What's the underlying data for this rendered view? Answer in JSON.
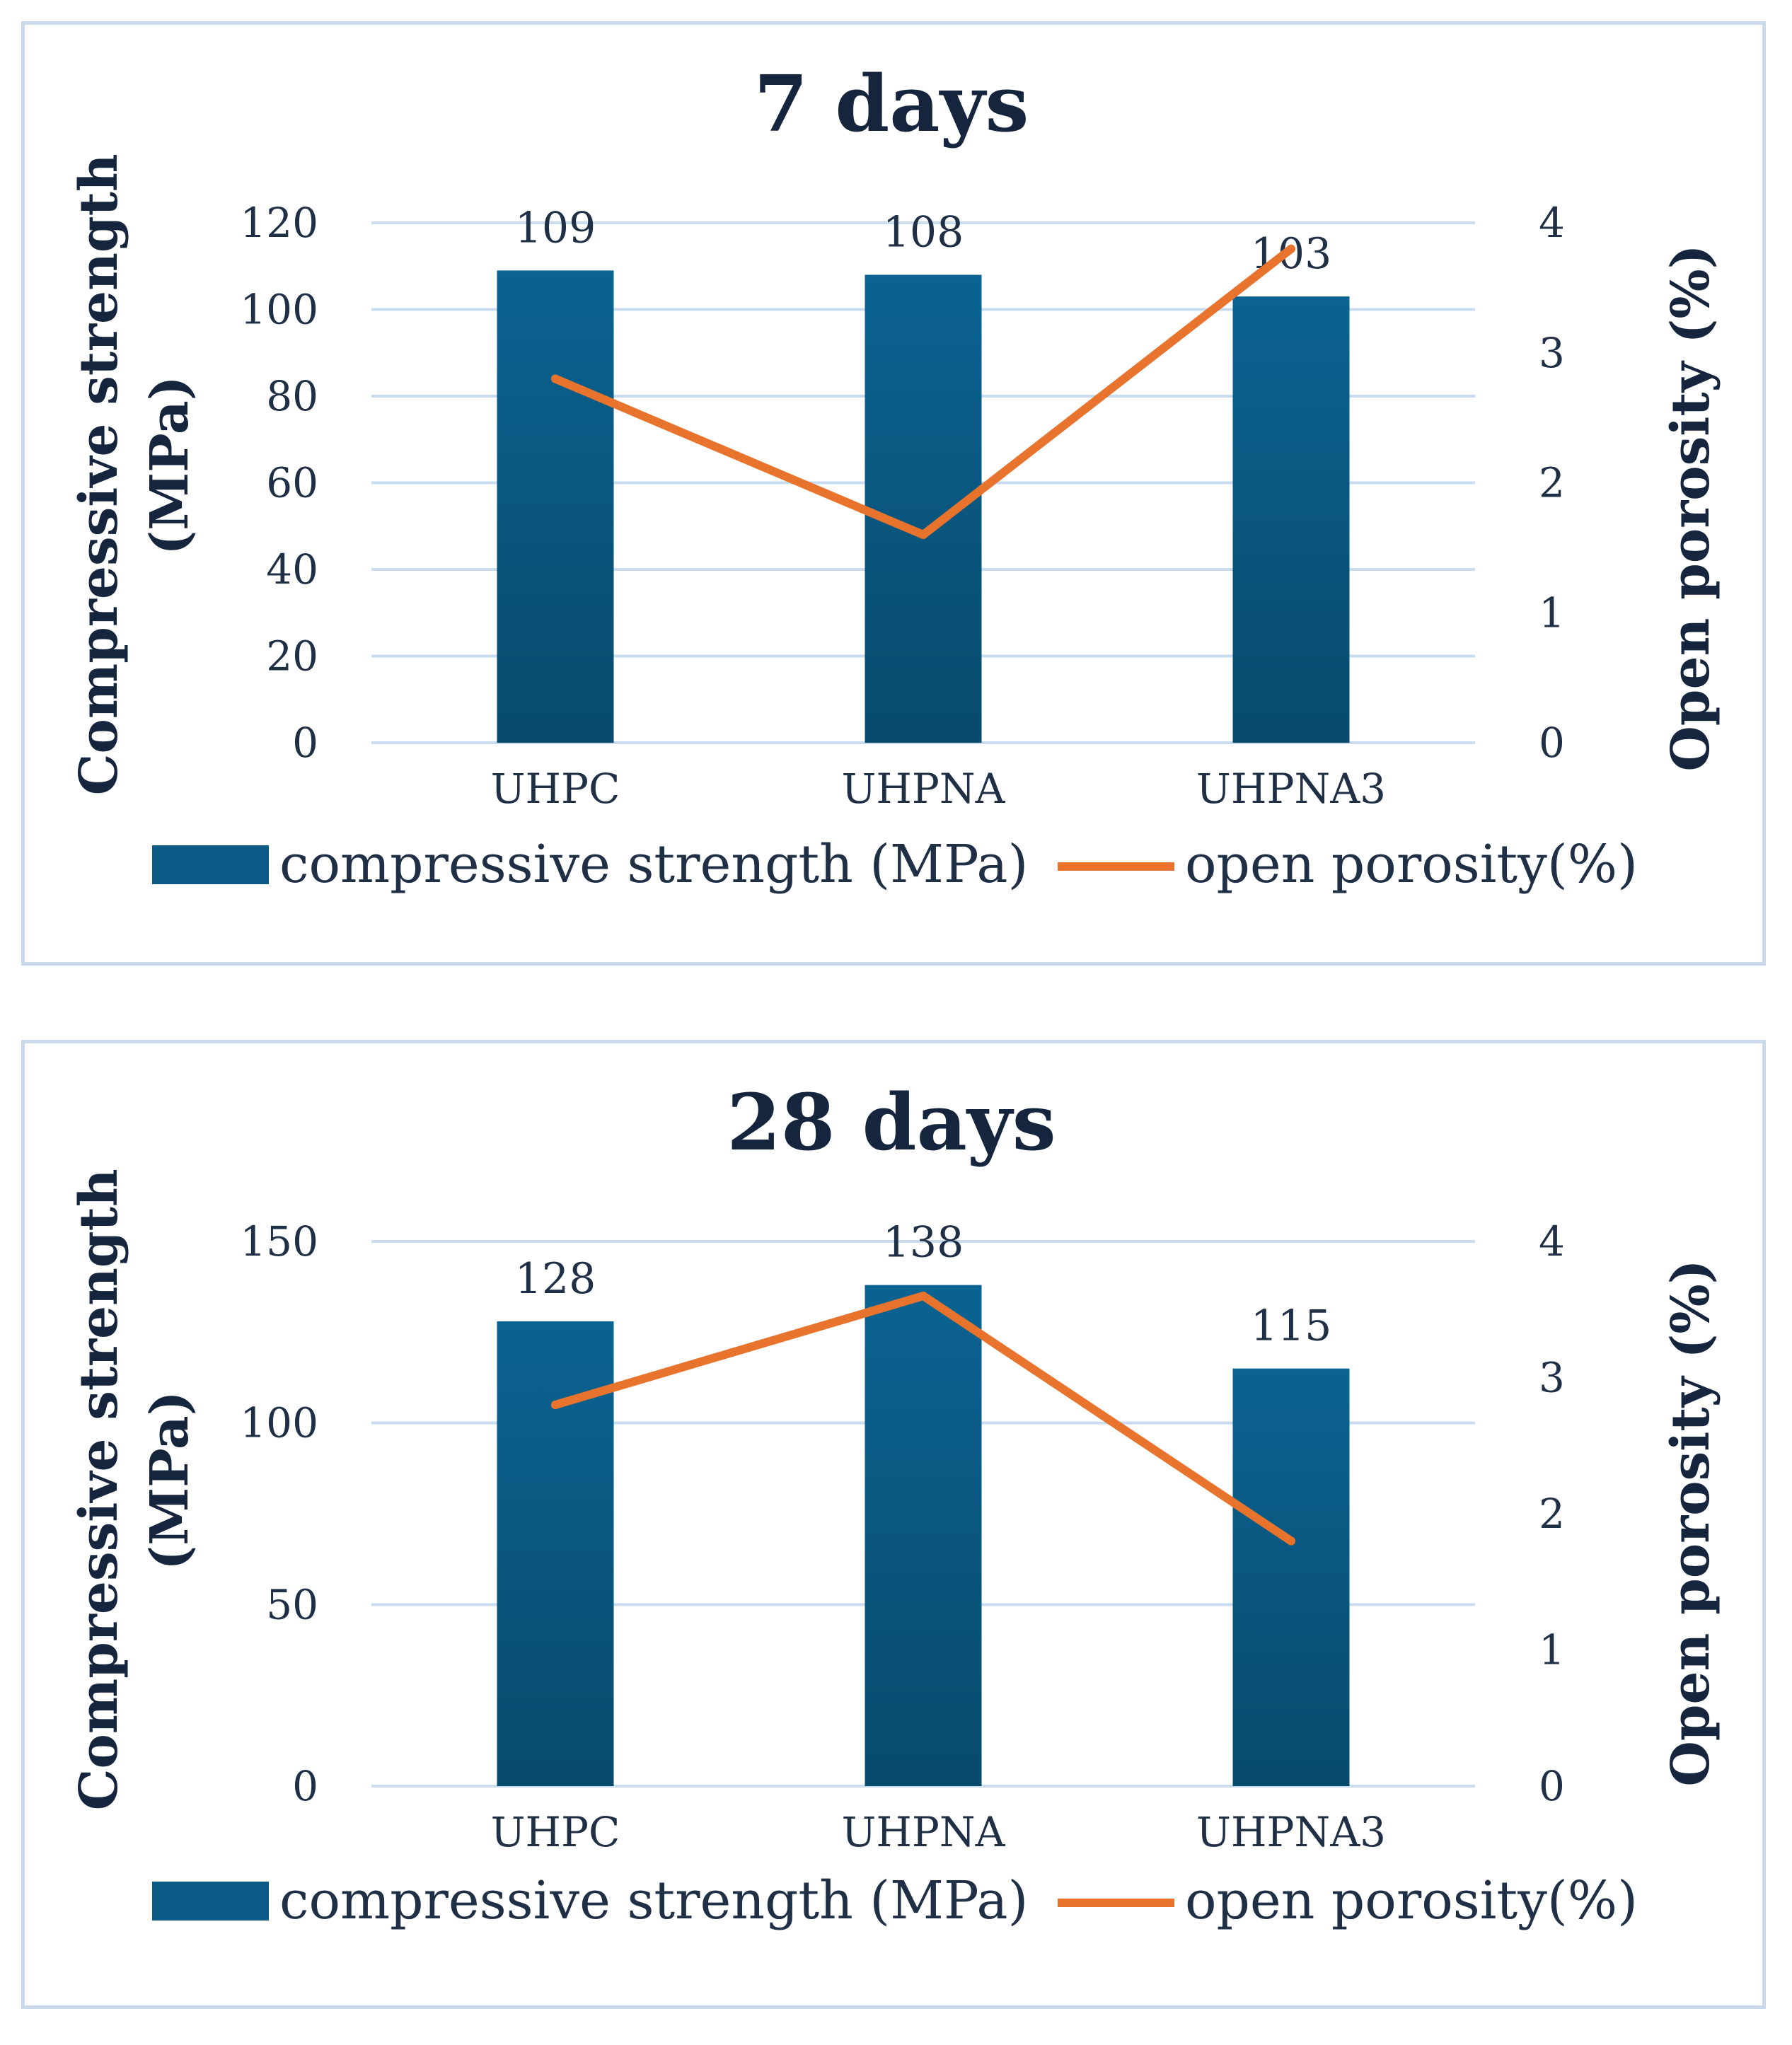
{
  "chart_data": [
    {
      "type": "bar",
      "title": "7 days",
      "categories": [
        "UHPC",
        "UHPNA",
        "UHPNA3"
      ],
      "series": [
        {
          "name": "compressive strength (MPa)",
          "axis": "left",
          "chart_type": "bar",
          "values": [
            109,
            108,
            103
          ],
          "data_labels": [
            "109",
            "108",
            "103"
          ],
          "color": "#0b5b86"
        },
        {
          "name": "open porosity(%)",
          "axis": "right",
          "chart_type": "line",
          "values": [
            2.8,
            1.6,
            3.8
          ],
          "color": "#e8732c"
        }
      ],
      "ylabel": "Compressive strength (MPa)",
      "ylabel_lines": [
        "Compressive strength",
        "(MPa)"
      ],
      "ylim": [
        0,
        120
      ],
      "yticks": [
        0,
        20,
        40,
        60,
        80,
        100,
        120
      ],
      "y2label": "Open porosity (%)",
      "y2lim": [
        0,
        4
      ],
      "y2ticks": [
        0,
        1,
        2,
        3,
        4
      ],
      "grid": true,
      "legend": "bottom"
    },
    {
      "type": "bar",
      "title": "28 days",
      "categories": [
        "UHPC",
        "UHPNA",
        "UHPNA3"
      ],
      "series": [
        {
          "name": "compressive strength (MPa)",
          "axis": "left",
          "chart_type": "bar",
          "values": [
            128,
            138,
            115
          ],
          "data_labels": [
            "128",
            "138",
            "115"
          ],
          "color": "#0b5b86"
        },
        {
          "name": "open porosity(%)",
          "axis": "right",
          "chart_type": "line",
          "values": [
            2.8,
            3.6,
            1.8
          ],
          "color": "#e8732c"
        }
      ],
      "ylabel": "Compressive strength (MPa)",
      "ylabel_lines": [
        "Compressive strength",
        "(MPa)"
      ],
      "ylim": [
        0,
        150
      ],
      "yticks": [
        0,
        50,
        100,
        150
      ],
      "y2label": "Open porosity (%)",
      "y2lim": [
        0,
        4
      ],
      "y2ticks": [
        0,
        1,
        2,
        3,
        4
      ],
      "grid": true,
      "legend": "bottom"
    }
  ]
}
